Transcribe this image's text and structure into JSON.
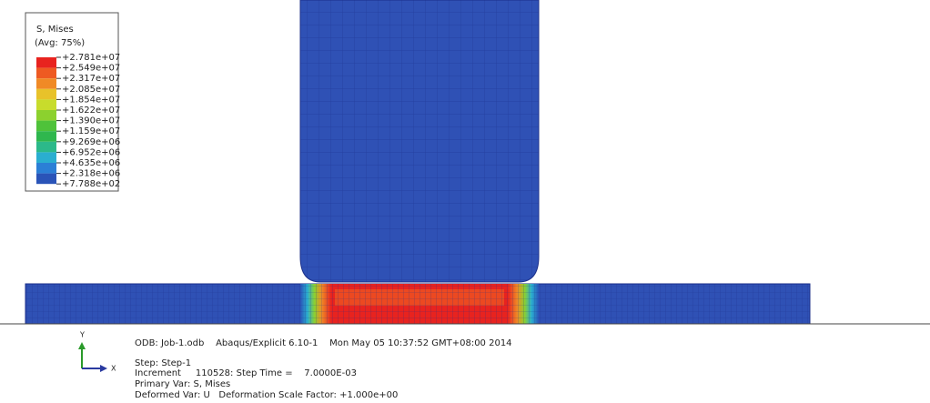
{
  "legend": {
    "title": "S, Mises",
    "subtitle": "(Avg: 75%)",
    "labels": [
      "+2.781e+07",
      "+2.549e+07",
      "+2.317e+07",
      "+2.085e+07",
      "+1.854e+07",
      "+1.622e+07",
      "+1.390e+07",
      "+1.159e+07",
      "+9.269e+06",
      "+6.952e+06",
      "+4.635e+06",
      "+2.318e+06",
      "+7.788e+02"
    ],
    "colors": [
      "#e8231f",
      "#ee5a22",
      "#f08a26",
      "#e8c22a",
      "#c8dc2c",
      "#8cd12e",
      "#4fc23a",
      "#2fb74e",
      "#2cb98a",
      "#2aaed0",
      "#2b7fd6",
      "#2a54b8"
    ]
  },
  "triad": {
    "y": "Y",
    "x": "X"
  },
  "info": {
    "odb": "ODB: Job-1.odb    Abaqus/Explicit 6.10-1    Mon May 05 10:37:52 GMT+08:00 2014",
    "step": "Step: Step-1",
    "increment": "Increment     110528: Step Time =    7.0000E-03",
    "primary": "Primary Var: S, Mises",
    "deformed": "Deformed Var: U   Deformation Scale Factor: +1.000e+00"
  }
}
